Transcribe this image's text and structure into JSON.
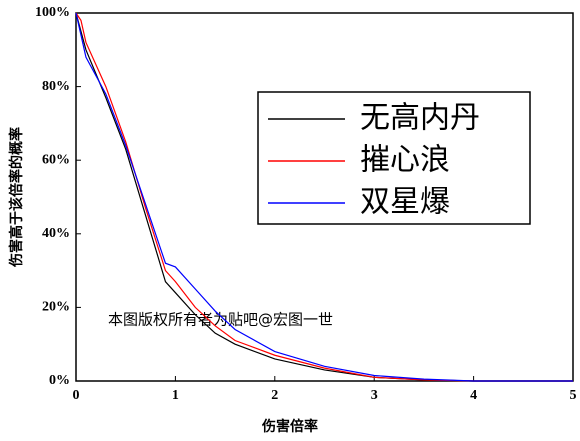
{
  "chart_data": {
    "type": "line",
    "xlabel": "伤害倍率",
    "ylabel": "伤害高于该倍率的概率",
    "annotation": "本图版权所有者为贴吧@宏图一世",
    "x": [
      0,
      0.05,
      0.1,
      0.3,
      0.5,
      0.7,
      0.9,
      1.0,
      1.2,
      1.4,
      1.6,
      2.0,
      2.5,
      3.0,
      3.5,
      4.0,
      5.0
    ],
    "series": [
      {
        "name": "无高内丹",
        "color": "#000000",
        "values": [
          100,
          95,
          90,
          77,
          63,
          45,
          27,
          24,
          18,
          13,
          10,
          6,
          3,
          1,
          0.3,
          0,
          0
        ]
      },
      {
        "name": "摧心浪",
        "color": "#ff0000",
        "values": [
          100,
          98,
          92,
          80,
          65,
          47,
          30,
          27,
          20,
          15,
          11,
          7,
          3.5,
          1,
          0.3,
          0,
          0
        ]
      },
      {
        "name": "双星爆",
        "color": "#0000ff",
        "values": [
          100,
          94,
          88,
          78,
          64,
          48,
          32,
          31,
          25,
          19,
          14,
          8,
          4,
          1.5,
          0.5,
          0,
          0
        ]
      }
    ],
    "xlim": [
      0,
      5
    ],
    "xticks": [
      0,
      1,
      2,
      3,
      4,
      5
    ],
    "ylim": [
      0,
      100
    ],
    "yticks": [
      {
        "value": 0,
        "label": "0%"
      },
      {
        "value": 20,
        "label": "20%"
      },
      {
        "value": 40,
        "label": "40%"
      },
      {
        "value": 60,
        "label": "60%"
      },
      {
        "value": 80,
        "label": "80%"
      },
      {
        "value": 100,
        "label": "100%"
      }
    ],
    "legend": "upper right"
  }
}
